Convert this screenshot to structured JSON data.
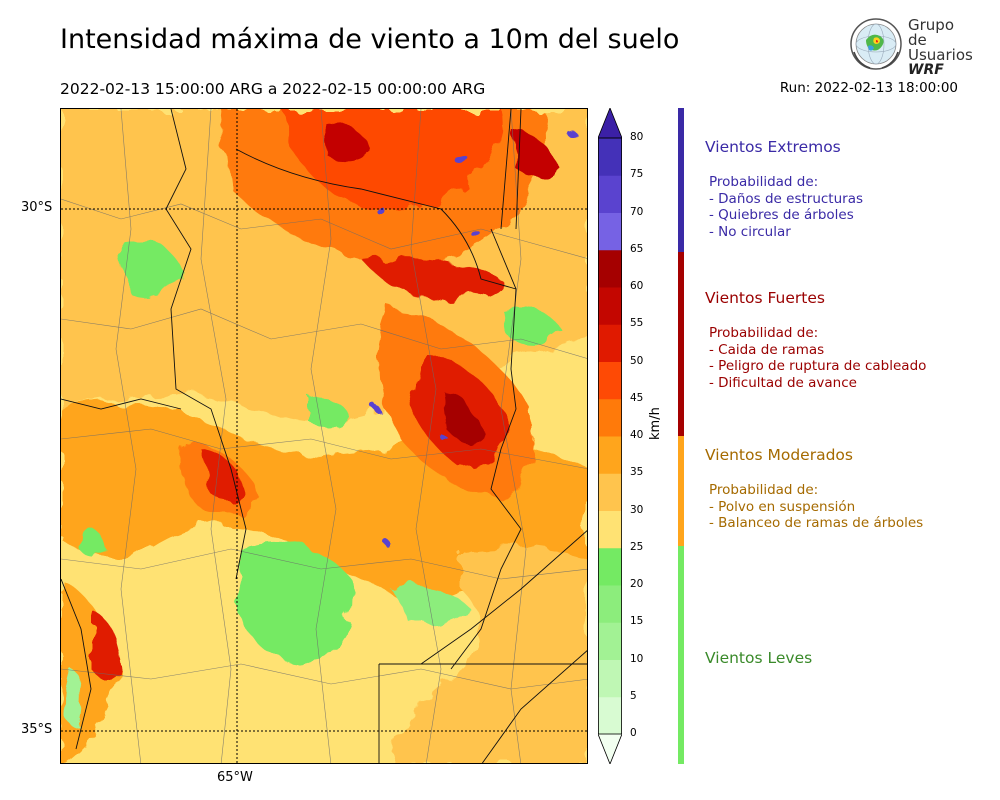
{
  "header": {
    "title": "Intensidad máxima de viento a 10m del suelo",
    "period": "2022-02-13 15:00:00 ARG  a  2022-02-15 00:00:00 ARG",
    "run": "Run: 2022-02-13 18:00:00"
  },
  "logo": {
    "line1": "Grupo de",
    "line2": "Usuarios",
    "line3": "WRF"
  },
  "map": {
    "lat_labels": [
      "30°S",
      "35°S"
    ],
    "lon_labels": [
      "65°W"
    ]
  },
  "colorbar": {
    "unit": "km/h",
    "ticks": [
      "0",
      "5",
      "10",
      "15",
      "20",
      "25",
      "30",
      "35",
      "40",
      "45",
      "50",
      "55",
      "60",
      "65",
      "70",
      "75",
      "80"
    ],
    "colors": [
      "#f2fff0",
      "#d8fbd2",
      "#bff7b4",
      "#a2f294",
      "#8ced7c",
      "#74ea63",
      "#ffe273",
      "#ffc44d",
      "#ffa51c",
      "#ff7a0a",
      "#fe4a05",
      "#e01a00",
      "#c30600",
      "#a50000",
      "#7662e4",
      "#5a43cf",
      "#4431b8",
      "#3b20a6"
    ]
  },
  "categories": [
    {
      "title": "Vientos Extremos",
      "color": "#3a2aa6",
      "lines": [
        "Probabilidad de:",
        "- Daños de estructuras",
        "- Quiebres de árboles",
        "- No circular"
      ]
    },
    {
      "title": "Vientos Fuertes",
      "color": "#9a0000",
      "lines": [
        "Probabilidad de:",
        "- Caida de ramas",
        "- Peligro de ruptura de cableado",
        "- Dificultad de avance"
      ]
    },
    {
      "title": "Vientos Moderados",
      "color": "#a56a00",
      "lines": [
        "Probabilidad de:",
        "- Polvo en suspensión",
        "- Balanceo de ramas de árboles"
      ]
    },
    {
      "title": "Vientos Leves",
      "color": "#3a8a2a",
      "lines": []
    }
  ],
  "side_bar_colors": [
    "#3a2aa6",
    "#a50000",
    "#ffa51c",
    "#74ea63"
  ]
}
